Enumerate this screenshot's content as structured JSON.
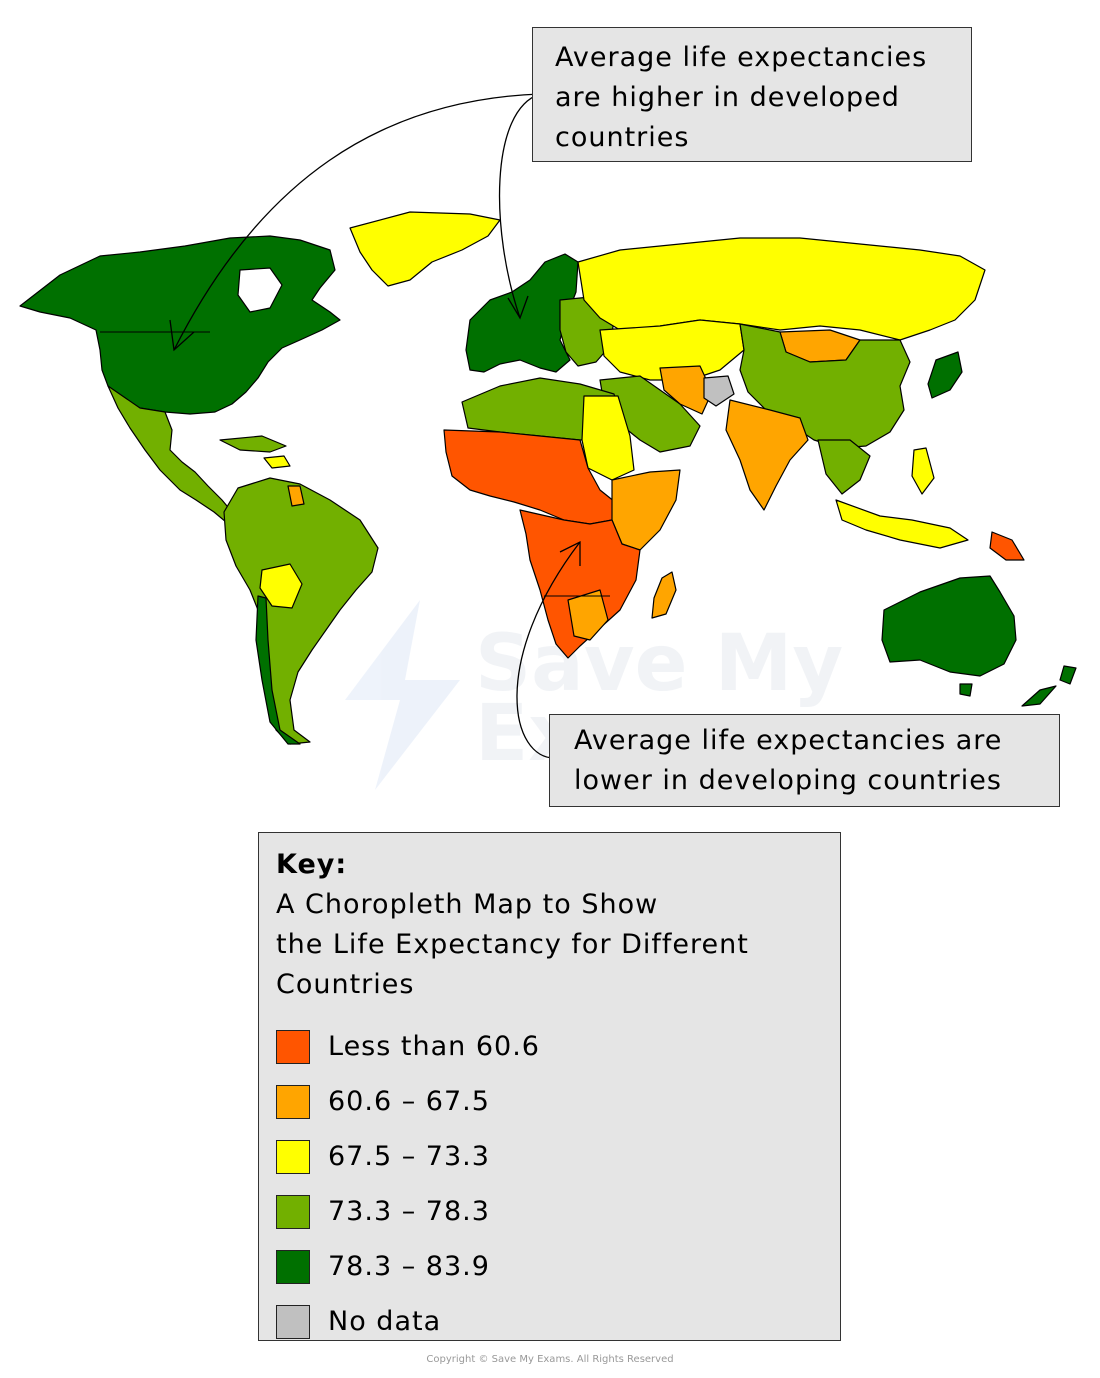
{
  "callouts": {
    "developed": [
      "Average life expectancies",
      "are higher in developed",
      "countries"
    ],
    "developing": [
      "Average life expectancies are",
      "lower in developing countries"
    ]
  },
  "key": {
    "heading": "Key:",
    "title_lines": [
      "A Choropleth Map to Show",
      "the Life Expectancy for Different",
      "Countries"
    ],
    "legend": [
      {
        "label": "Less than 60.6",
        "color": "#ff5500"
      },
      {
        "label": "60.6 – 67.5",
        "color": "#ffa500"
      },
      {
        "label": "67.5 – 73.3",
        "color": "#ffff00"
      },
      {
        "label": "73.3 – 78.3",
        "color": "#72b000"
      },
      {
        "label": "78.3 – 83.9",
        "color": "#007000"
      },
      {
        "label": "No data",
        "color": "#c0c0c0"
      }
    ]
  },
  "watermark": [
    "Save My",
    "Exams"
  ],
  "copyright": "Copyright © Save My Exams. All Rights Reserved"
}
